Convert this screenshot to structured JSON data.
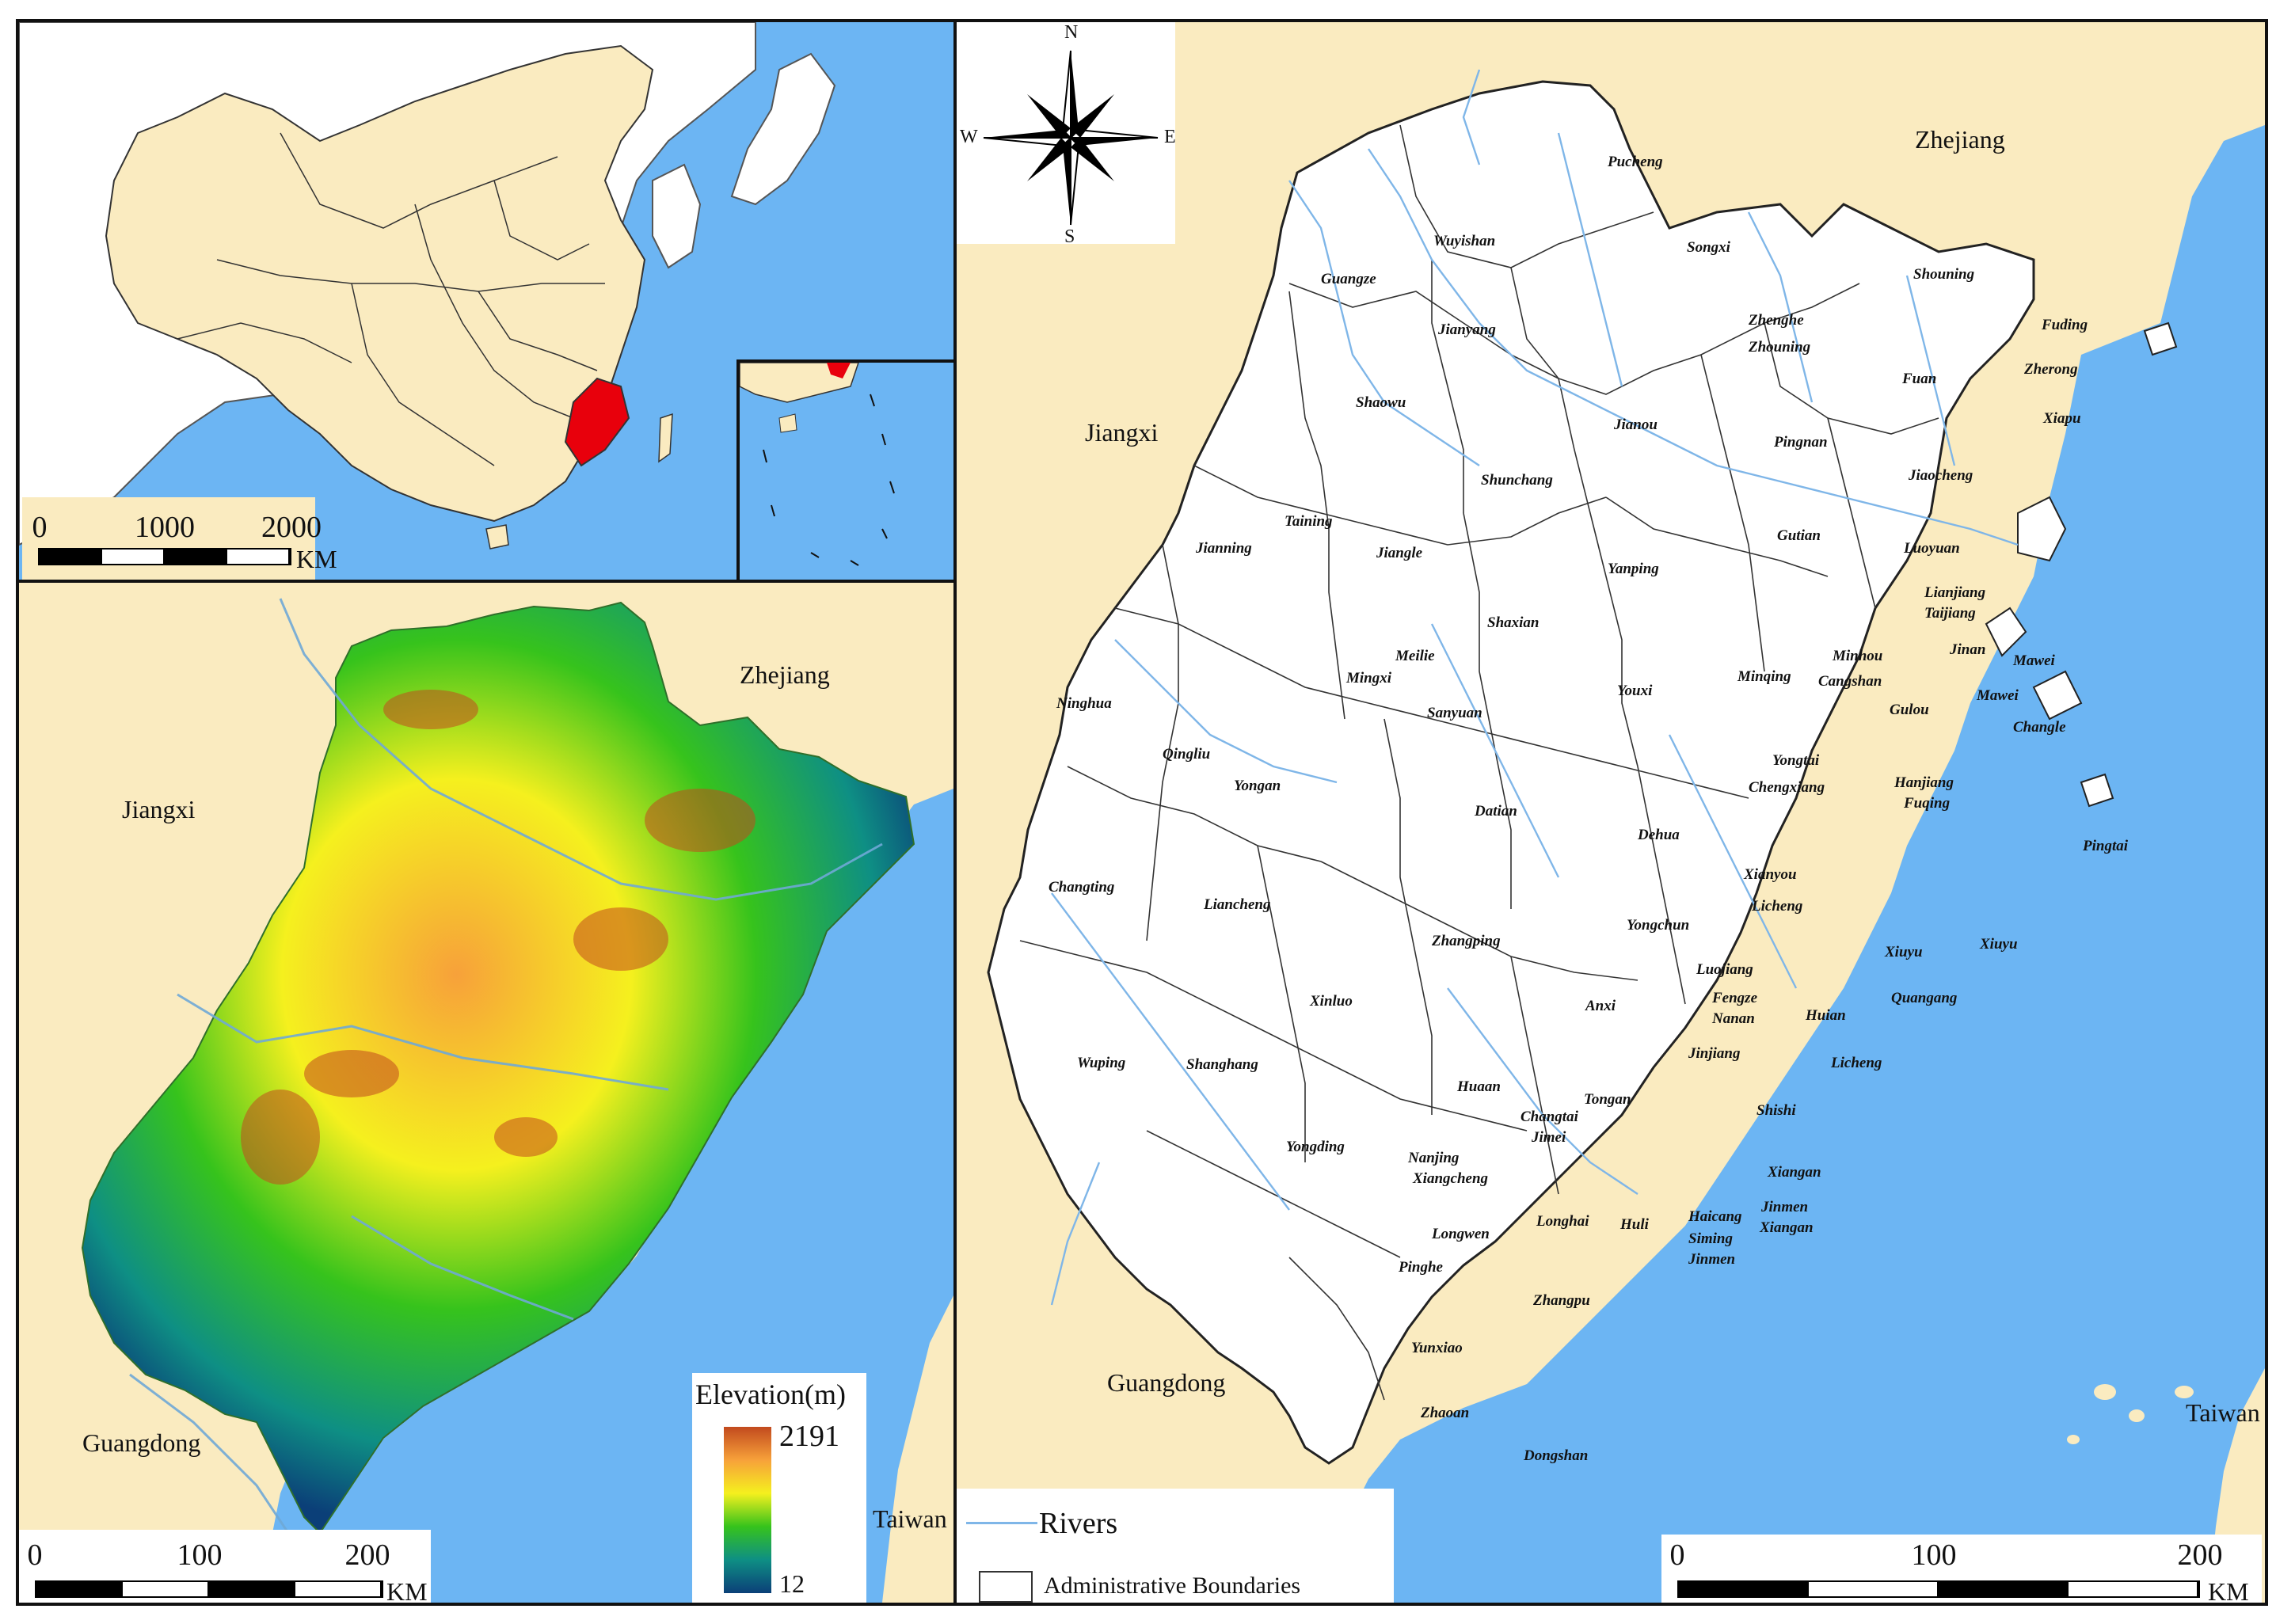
{
  "overview_map": {
    "scale": {
      "ticks": [
        "0",
        "1000",
        "2000"
      ],
      "unit": "KM"
    },
    "colors": {
      "sea": "#6cb5f3",
      "china": "#faebc0",
      "highlight": "#e8000c",
      "neighbor": "#ffffff"
    }
  },
  "elevation_map": {
    "region_labels": {
      "zhejiang": "Zhejiang",
      "jiangxi": "Jiangxi",
      "guangdong": "Guangdong",
      "taiwan": "Taiwan"
    },
    "legend": {
      "title": "Elevation(m)",
      "max": "2191",
      "min": "12",
      "gradient": [
        "#c24a1e",
        "#f7a13a",
        "#f5f01e",
        "#36c31c",
        "#0e8f84",
        "#0b3f78"
      ]
    },
    "scale": {
      "ticks": [
        "0",
        "100",
        "200"
      ],
      "unit": "KM"
    }
  },
  "admin_map": {
    "compass": {
      "n": "N",
      "s": "S",
      "e": "E",
      "w": "W"
    },
    "region_labels": {
      "zhejiang": "Zhejiang",
      "jiangxi": "Jiangxi",
      "guangdong": "Guangdong",
      "taiwan": "Taiwan"
    },
    "counties": [
      "Pucheng",
      "Wuyishan",
      "Songxi",
      "Guangze",
      "Shouning",
      "Fuding",
      "Jianyang",
      "Zhenghe",
      "Zhouning",
      "Zherong",
      "Fuan",
      "Xiapu",
      "Shaowu",
      "Jianou",
      "Pingnan",
      "Shunchang",
      "Jiaocheng",
      "Taining",
      "Jianning",
      "Jiangle",
      "Gutian",
      "Luoyuan",
      "Yanping",
      "Lianjiang",
      "Taijiang",
      "Shaxian",
      "Meilie",
      "Mingxi",
      "Jinan",
      "Mawei",
      "Youxi",
      "Minqing",
      "Minhou",
      "Cangshan",
      "Mawei",
      "Ninghua",
      "Sanyuan",
      "Gulou",
      "Changle",
      "Qingliu",
      "Yongtai",
      "Chengxiang",
      "Hanjiang",
      "Fuqing",
      "Yongan",
      "Datian",
      "Dehua",
      "Pingtai",
      "Changting",
      "Xianyou",
      "Licheng",
      "Liancheng",
      "Yongchun",
      "Xiuyu",
      "Xiuyu",
      "Zhangping",
      "Luojiang",
      "Fengze",
      "Nanan",
      "Quangang",
      "Xinluo",
      "Anxi",
      "Huian",
      "Wuping",
      "Shanghang",
      "Jinjiang",
      "Licheng",
      "Huaan",
      "Tongan",
      "Changtai",
      "Jimei",
      "Shishi",
      "Yongding",
      "Nanjing",
      "Xiangcheng",
      "Xiangan",
      "Jinmen",
      "Haicang",
      "Xiangan",
      "Longwen",
      "Longhai",
      "Huli",
      "Siming",
      "Jinmen",
      "Pinghe",
      "Zhangpu",
      "Yunxiao",
      "Zhaoan",
      "Dongshan"
    ],
    "legend": {
      "rivers": "Rivers",
      "boundaries": "Administrative Boundaries"
    },
    "scale": {
      "ticks": [
        "0",
        "100",
        "200"
      ],
      "unit": "KM"
    },
    "colors": {
      "land": "#ffffff",
      "river": "#7fb6e8",
      "surroundings": "#faebc0",
      "sea": "#6cb5f3"
    }
  }
}
